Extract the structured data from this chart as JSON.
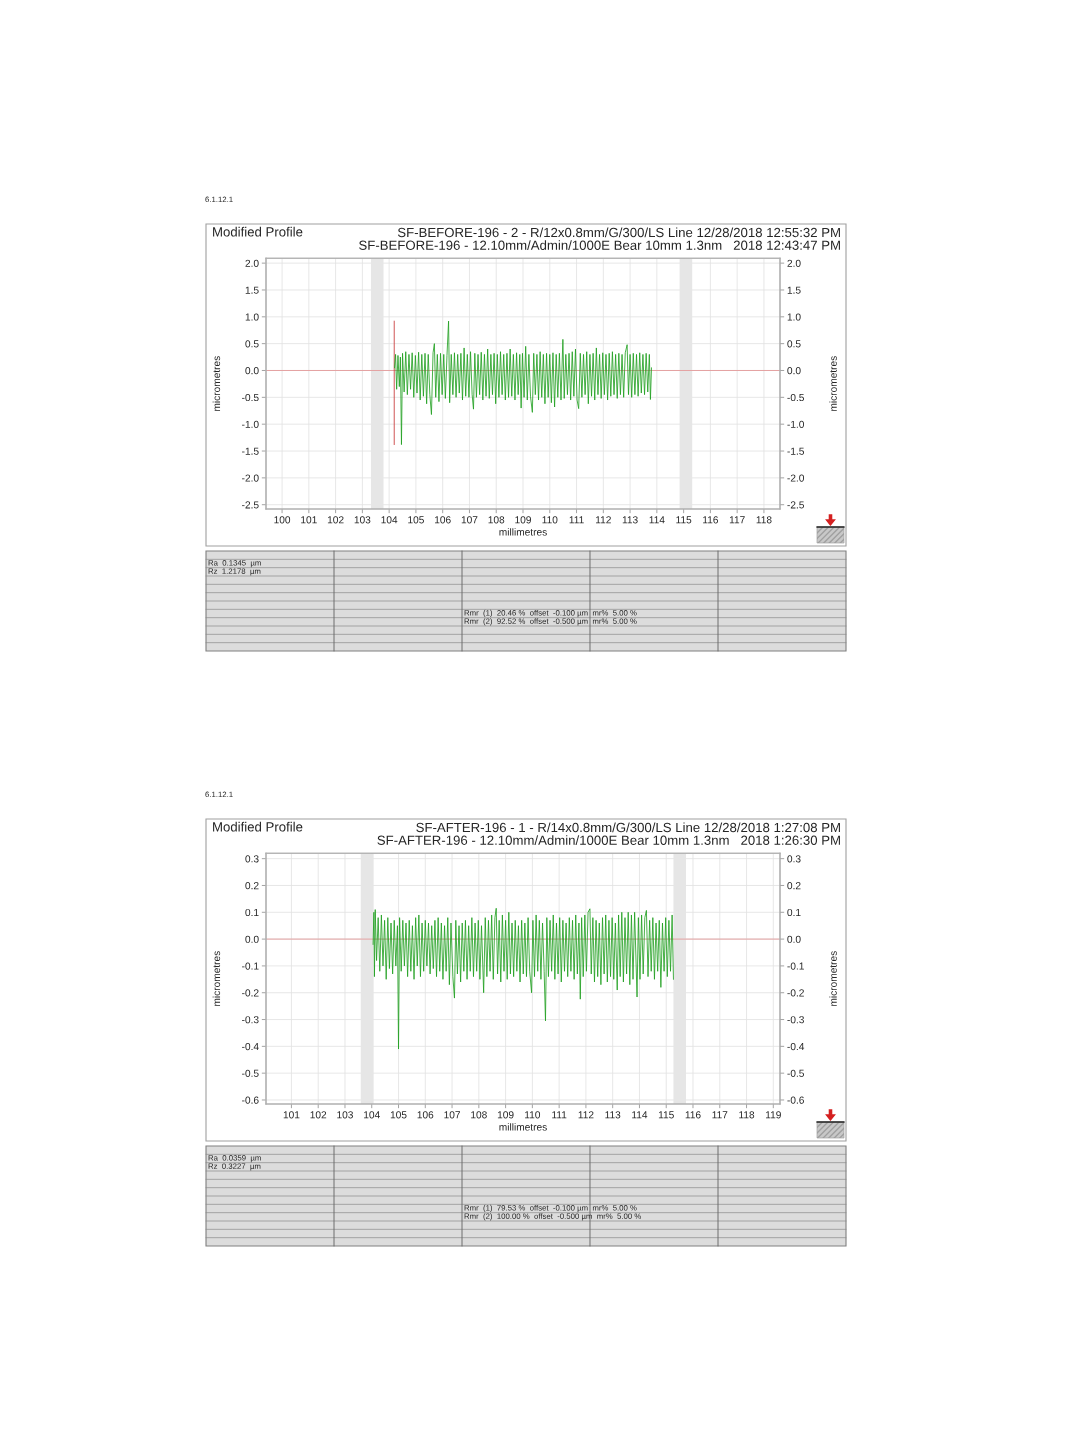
{
  "chart_data": [
    {
      "type": "line",
      "title": "Modified Profile",
      "subtitle": "SF-BEFORE-196 - 2 - R/12x0.8mm/G/300/LS Line 12/28/2018 12:55:32 PM\nSF-BEFORE-196 - 12.10mm/Admin/1000E Bear 10mm 1.3nm   2018 12:43:47 PM",
      "xlabel": "millimetres",
      "ylabel": "micrometres",
      "y2label": "micrometres",
      "annotations": [
        "6.1.12.1",
        "Ra  0.1345  µm",
        "Rz  1.2178  µm",
        "Rmr  (1)  20.46 %  offset  -0.100 µm  mr%  5.00 %",
        "Rmr  (2)  92.52 %  offset  -0.500 µm  mr%  5.00 %"
      ],
      "xlim": [
        99.4,
        118.6
      ],
      "ylim": [
        -2.58,
        2.09
      ],
      "y2lim": [
        -2.58,
        2.09
      ],
      "xticks": [
        100,
        101,
        102,
        103,
        104,
        105,
        106,
        107,
        108,
        109,
        110,
        111,
        112,
        113,
        114,
        115,
        116,
        117,
        118
      ],
      "yticks": [
        {
          "value": 2,
          "label": "2.0"
        },
        {
          "value": 1.5,
          "label": "1.5"
        },
        {
          "value": 1,
          "label": "1.0"
        },
        {
          "value": 0.5,
          "label": "0.5"
        },
        {
          "value": 0,
          "label": "0.0"
        },
        {
          "value": -0.5,
          "label": "-0.5"
        },
        {
          "value": -1,
          "label": "-1.0"
        },
        {
          "value": -1.5,
          "label": "-1.5"
        },
        {
          "value": -2,
          "label": "-2.0"
        },
        {
          "value": -2.5,
          "label": "-2.5"
        }
      ],
      "y2ticks": [
        {
          "value": 2,
          "label": "2.0"
        },
        {
          "value": 1.5,
          "label": "1.5"
        },
        {
          "value": 1,
          "label": "1.0"
        },
        {
          "value": 0.5,
          "label": "0.5"
        },
        {
          "value": 0,
          "label": "0.0"
        },
        {
          "value": -0.5,
          "label": "-0.5"
        },
        {
          "value": -1,
          "label": "-1.0"
        },
        {
          "value": -1.5,
          "label": "-1.5"
        },
        {
          "value": -2,
          "label": "-2.0"
        },
        {
          "value": -2.5,
          "label": "-2.5"
        }
      ],
      "grid": true,
      "bands": [
        {
          "axis": "x",
          "from": 103.32,
          "to": 103.79,
          "color": "#e6e6e6"
        },
        {
          "axis": "x",
          "from": 114.85,
          "to": 115.32,
          "color": "#e6e6e6"
        }
      ],
      "ref_lines": [
        {
          "axis": "y",
          "value": 0,
          "color": "#e4a0a0"
        }
      ],
      "series": [
        {
          "color": "#c83232",
          "x": [
            104.19,
            104.19
          ],
          "values": [
            0.92,
            -1.38
          ]
        },
        {
          "color": "#22a022",
          "x": [
            104.2,
            104.24,
            104.28,
            104.33,
            104.38,
            104.42,
            104.46,
            104.5,
            104.56,
            104.62,
            104.68,
            104.74,
            104.8,
            104.86,
            104.92,
            104.98,
            105.04,
            105.1,
            105.16,
            105.22,
            105.28,
            105.34,
            105.4,
            105.46,
            105.52,
            105.58,
            105.64,
            105.69,
            105.74,
            105.8,
            105.86,
            105.92,
            105.98,
            106.04,
            106.1,
            106.16,
            106.22,
            106.26,
            106.32,
            106.38,
            106.44,
            106.5,
            106.56,
            106.62,
            106.68,
            106.74,
            106.8,
            106.86,
            106.92,
            106.98,
            107.04,
            107.1,
            107.15,
            107.2,
            107.26,
            107.32,
            107.38,
            107.44,
            107.5,
            107.56,
            107.62,
            107.68,
            107.74,
            107.8,
            107.86,
            107.92,
            107.98,
            108.04,
            108.1,
            108.16,
            108.22,
            108.28,
            108.34,
            108.4,
            108.46,
            108.52,
            108.58,
            108.64,
            108.7,
            108.76,
            108.82,
            108.88,
            108.93,
            108.98,
            109.04,
            109.1,
            109.16,
            109.22,
            109.28,
            109.35,
            109.4,
            109.46,
            109.52,
            109.58,
            109.64,
            109.7,
            109.76,
            109.82,
            109.88,
            109.94,
            110.0,
            110.06,
            110.12,
            110.18,
            110.24,
            110.3,
            110.36,
            110.42,
            110.49,
            110.54,
            110.6,
            110.66,
            110.72,
            110.78,
            110.84,
            110.9,
            110.96,
            111.02,
            111.08,
            111.14,
            111.2,
            111.26,
            111.32,
            111.38,
            111.44,
            111.5,
            111.56,
            111.62,
            111.68,
            111.74,
            111.8,
            111.86,
            111.92,
            111.98,
            112.04,
            112.1,
            112.16,
            112.22,
            112.28,
            112.34,
            112.4,
            112.46,
            112.52,
            112.58,
            112.64,
            112.7,
            112.76,
            112.82,
            112.89,
            112.94,
            113.0,
            113.06,
            113.12,
            113.18,
            113.24,
            113.3,
            113.36,
            113.42,
            113.48,
            113.54,
            113.6,
            113.66,
            113.72,
            113.76,
            113.8
          ],
          "values": [
            0.05,
            0.3,
            -0.35,
            0.28,
            -0.3,
            0.25,
            -1.38,
            0.32,
            -0.4,
            0.35,
            -0.45,
            0.3,
            -0.35,
            0.33,
            -0.5,
            0.28,
            -0.42,
            0.34,
            -0.55,
            0.3,
            -0.48,
            0.32,
            -0.62,
            0.3,
            -0.45,
            -0.82,
            0.33,
            0.5,
            -0.5,
            0.3,
            -0.58,
            0.32,
            -0.45,
            0.3,
            -0.52,
            0.28,
            0.92,
            -0.6,
            0.3,
            -0.45,
            0.33,
            -0.5,
            0.3,
            -0.42,
            0.32,
            -0.55,
            0.42,
            -0.48,
            0.3,
            -0.5,
            0.35,
            -0.45,
            -0.72,
            0.32,
            -0.5,
            0.3,
            -0.45,
            0.34,
            -0.55,
            0.3,
            -0.48,
            0.4,
            -0.52,
            0.3,
            -0.45,
            0.32,
            -0.62,
            0.3,
            -0.5,
            0.35,
            -0.45,
            0.3,
            -0.55,
            0.32,
            -0.5,
            0.4,
            -0.48,
            0.3,
            -0.55,
            0.33,
            -0.45,
            0.3,
            -0.7,
            0.32,
            -0.5,
            0.45,
            -0.55,
            0.3,
            -0.48,
            -0.78,
            0.32,
            -0.45,
            0.3,
            -0.55,
            0.35,
            -0.5,
            0.3,
            -0.62,
            0.32,
            -0.5,
            0.3,
            -0.6,
            0.33,
            -0.68,
            0.3,
            -0.5,
            0.32,
            -0.55,
            0.58,
            -0.52,
            0.3,
            -0.45,
            0.32,
            -0.55,
            0.35,
            -0.48,
            0.4,
            -0.55,
            -0.71,
            0.32,
            -0.5,
            0.3,
            -0.45,
            0.35,
            -0.62,
            0.3,
            -0.48,
            0.32,
            -0.55,
            0.42,
            -0.45,
            0.3,
            -0.52,
            0.33,
            -0.45,
            0.3,
            -0.55,
            0.32,
            -0.48,
            0.35,
            -0.45,
            0.3,
            -0.52,
            0.32,
            -0.45,
            0.3,
            -0.5,
            0.33,
            0.48,
            -0.45,
            0.3,
            -0.5,
            0.32,
            -0.45,
            0.3,
            -0.48,
            0.33,
            -0.42,
            0.3,
            -0.45,
            0.32,
            -0.4,
            0.3,
            -0.54,
            0.05
          ]
        }
      ]
    },
    {
      "type": "line",
      "title": "Modified Profile",
      "subtitle": "SF-AFTER-196 - 1 - R/14x0.8mm/G/300/LS Line 12/28/2018 1:27:08 PM\nSF-AFTER-196 - 12.10mm/Admin/1000E Bear 10mm 1.3nm   2018 1:26:30 PM",
      "xlabel": "millimetres",
      "ylabel": "micrometres",
      "y2label": "micrometres",
      "annotations": [
        "6.1.12.1",
        "Ra  0.0359  µm",
        "Rz  0.3227  µm",
        "Rmr  (1)  79.53 %  offset  -0.100 µm  mr%  5.00 %",
        "Rmr  (2)  100.00 %  offset  -0.500 µm  mr%  5.00 %"
      ],
      "xlim": [
        100.05,
        119.25
      ],
      "ylim": [
        -0.615,
        0.32
      ],
      "y2lim": [
        -0.615,
        0.32
      ],
      "xticks": [
        101,
        102,
        103,
        104,
        105,
        106,
        107,
        108,
        109,
        110,
        111,
        112,
        113,
        114,
        115,
        116,
        117,
        118,
        119
      ],
      "yticks": [
        {
          "value": 0.3,
          "label": "0.3"
        },
        {
          "value": 0.2,
          "label": "0.2"
        },
        {
          "value": 0.1,
          "label": "0.1"
        },
        {
          "value": 0,
          "label": "0.0"
        },
        {
          "value": -0.1,
          "label": "-0.1"
        },
        {
          "value": -0.2,
          "label": "-0.2"
        },
        {
          "value": -0.3,
          "label": "-0.3"
        },
        {
          "value": -0.4,
          "label": "-0.4"
        },
        {
          "value": -0.5,
          "label": "-0.5"
        },
        {
          "value": -0.6,
          "label": "-0.6"
        }
      ],
      "y2ticks": [
        {
          "value": 0.3,
          "label": "0.3"
        },
        {
          "value": 0.2,
          "label": "0.2"
        },
        {
          "value": 0.1,
          "label": "0.1"
        },
        {
          "value": 0,
          "label": "0.0"
        },
        {
          "value": -0.1,
          "label": "-0.1"
        },
        {
          "value": -0.2,
          "label": "-0.2"
        },
        {
          "value": -0.3,
          "label": "-0.3"
        },
        {
          "value": -0.4,
          "label": "-0.4"
        },
        {
          "value": -0.5,
          "label": "-0.5"
        },
        {
          "value": -0.6,
          "label": "-0.6"
        }
      ],
      "grid": true,
      "bands": [
        {
          "axis": "x",
          "from": 103.59,
          "to": 104.07,
          "color": "#e6e6e6"
        },
        {
          "axis": "x",
          "from": 115.27,
          "to": 115.74,
          "color": "#e6e6e6"
        }
      ],
      "ref_lines": [
        {
          "axis": "y",
          "value": 0,
          "color": "#e4a0a0"
        }
      ],
      "series": [
        {
          "color": "#22a022",
          "x": [
            104.05,
            104.08,
            104.1,
            104.13,
            104.18,
            104.24,
            104.3,
            104.36,
            104.42,
            104.48,
            104.54,
            104.6,
            104.66,
            104.72,
            104.78,
            104.84,
            104.9,
            104.96,
            105.0,
            105.04,
            105.1,
            105.16,
            105.22,
            105.28,
            105.34,
            105.4,
            105.46,
            105.52,
            105.58,
            105.64,
            105.7,
            105.76,
            105.82,
            105.88,
            105.94,
            106.0,
            106.06,
            106.12,
            106.18,
            106.24,
            106.3,
            106.36,
            106.42,
            106.48,
            106.54,
            106.6,
            106.66,
            106.72,
            106.78,
            106.84,
            106.9,
            106.96,
            107.03,
            107.09,
            107.14,
            107.2,
            107.26,
            107.32,
            107.38,
            107.44,
            107.5,
            107.56,
            107.62,
            107.68,
            107.74,
            107.8,
            107.86,
            107.92,
            107.98,
            108.04,
            108.1,
            108.18,
            108.24,
            108.3,
            108.36,
            108.42,
            108.48,
            108.54,
            108.6,
            108.65,
            108.7,
            108.76,
            108.82,
            108.88,
            108.94,
            109.0,
            109.06,
            109.12,
            109.18,
            109.24,
            109.3,
            109.36,
            109.42,
            109.48,
            109.54,
            109.6,
            109.66,
            109.72,
            109.78,
            109.84,
            109.9,
            109.97,
            110.02,
            110.08,
            110.14,
            110.2,
            110.26,
            110.32,
            110.38,
            110.44,
            110.49,
            110.54,
            110.6,
            110.66,
            110.72,
            110.78,
            110.84,
            110.9,
            110.96,
            111.02,
            111.08,
            111.14,
            111.2,
            111.26,
            111.32,
            111.38,
            111.44,
            111.5,
            111.56,
            111.62,
            111.68,
            111.74,
            111.79,
            111.84,
            111.9,
            111.96,
            112.02,
            112.08,
            112.15,
            112.2,
            112.26,
            112.32,
            112.38,
            112.44,
            112.5,
            112.56,
            112.62,
            112.68,
            112.74,
            112.8,
            112.86,
            112.92,
            112.98,
            113.04,
            113.1,
            113.17,
            113.22,
            113.28,
            113.34,
            113.4,
            113.46,
            113.52,
            113.58,
            113.64,
            113.7,
            113.76,
            113.82,
            113.91,
            113.96,
            114.02,
            114.08,
            114.14,
            114.2,
            114.26,
            114.32,
            114.38,
            114.44,
            114.5,
            114.56,
            114.62,
            114.68,
            114.74,
            114.8,
            114.86,
            114.92,
            114.98,
            115.04,
            115.1,
            115.16,
            115.22,
            115.27
          ],
          "values": [
            -0.02,
            0.1,
            -0.14,
            0.11,
            -0.08,
            0.08,
            -0.12,
            0.09,
            -0.1,
            0.07,
            -0.15,
            0.08,
            -0.11,
            0.06,
            -0.13,
            0.07,
            -0.1,
            0.05,
            -0.41,
            0.08,
            -0.12,
            0.07,
            -0.1,
            0.06,
            -0.14,
            0.07,
            -0.12,
            0.05,
            -0.15,
            0.08,
            -0.1,
            0.09,
            -0.14,
            0.06,
            -0.12,
            0.07,
            -0.1,
            0.06,
            -0.13,
            0.05,
            -0.11,
            0.07,
            -0.14,
            0.08,
            -0.12,
            0.06,
            -0.15,
            0.05,
            -0.12,
            0.08,
            -0.17,
            0.06,
            -0.14,
            -0.22,
            0.07,
            -0.13,
            0.05,
            -0.16,
            0.06,
            -0.12,
            0.07,
            -0.15,
            0.05,
            -0.12,
            0.08,
            -0.14,
            0.06,
            -0.12,
            0.07,
            -0.15,
            0.05,
            -0.2,
            0.08,
            -0.14,
            0.07,
            -0.12,
            0.09,
            -0.15,
            0.08,
            0.115,
            -0.13,
            0.07,
            -0.16,
            0.09,
            -0.12,
            0.07,
            -0.15,
            0.1,
            -0.13,
            0.06,
            -0.14,
            0.07,
            -0.12,
            0.05,
            -0.16,
            0.07,
            -0.13,
            0.06,
            -0.14,
            0.08,
            -0.12,
            -0.2,
            0.07,
            -0.14,
            0.09,
            -0.12,
            0.07,
            -0.15,
            0.06,
            -0.12,
            -0.305,
            0.08,
            -0.14,
            0.07,
            -0.12,
            0.09,
            -0.15,
            0.06,
            -0.13,
            0.08,
            -0.16,
            0.07,
            -0.12,
            0.06,
            -0.14,
            0.08,
            -0.12,
            0.07,
            -0.15,
            0.09,
            -0.13,
            0.06,
            -0.224,
            0.08,
            -0.14,
            0.09,
            -0.12,
            0.1,
            0.113,
            -0.13,
            0.08,
            -0.16,
            0.07,
            -0.14,
            0.06,
            -0.17,
            0.08,
            -0.13,
            0.09,
            -0.16,
            0.07,
            -0.14,
            0.08,
            -0.15,
            0.06,
            -0.19,
            0.09,
            -0.14,
            0.1,
            -0.16,
            0.08,
            -0.13,
            0.1,
            -0.17,
            0.09,
            -0.15,
            0.1,
            -0.216,
            0.08,
            -0.15,
            0.09,
            -0.13,
            0.08,
            0.107,
            -0.14,
            0.07,
            -0.12,
            0.08,
            -0.15,
            0.06,
            -0.12,
            0.07,
            -0.18,
            0.06,
            -0.12,
            0.08,
            -0.14,
            0.07,
            -0.12,
            0.09,
            -0.15
          ]
        }
      ]
    }
  ]
}
